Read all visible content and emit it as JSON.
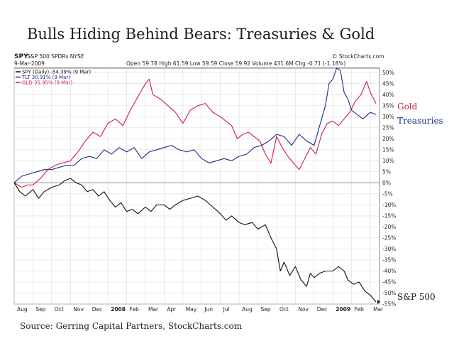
{
  "slide_title": "Bulls Hiding Behind Bears: Treasuries & Gold",
  "source": "Source: Gerring Capital Partners, StockCharts.com",
  "side_labels": {
    "gold": {
      "text": "Gold",
      "color": "#c0203a"
    },
    "treasuries": {
      "text": "Treasuries",
      "color": "#1a2a8a"
    },
    "sp500": {
      "text": "S&P 500",
      "color": "#111111"
    }
  },
  "header": {
    "ticker": "SPY",
    "name": "S&P 500 SPDRs NYSE",
    "credit": "© StockCharts.com",
    "date": "9-Mar-2009",
    "quote": "Open 59.78  High 61.59  Low 59.59  Close 59.92  Volume 431.6M  Chg -0.71 (-1.18%)"
  },
  "legend": [
    {
      "label": "SPY (Daily) -54.39% (9 Mar)",
      "color": "#111111"
    },
    {
      "label": "TLT 30.91% (9 Mar)",
      "color": "#1a2a8a"
    },
    {
      "label": "GLD 35.95% (9 Mar)",
      "color": "#d01a4a"
    }
  ],
  "chart_data": {
    "type": "line",
    "title": "",
    "xlabel": "",
    "ylabel": "",
    "ylim": [
      -55,
      52
    ],
    "y_ticks": [
      "50%",
      "45%",
      "40%",
      "35%",
      "30%",
      "25%",
      "20%",
      "15%",
      "10%",
      "5%",
      "0%",
      "-5%",
      "-10%",
      "-15%",
      "-20%",
      "-25%",
      "-30%",
      "-35%",
      "-40%",
      "-45%",
      "-50%",
      "-55%"
    ],
    "x_ticks": [
      {
        "label": "Aug",
        "bold": false
      },
      {
        "label": "Sep",
        "bold": false
      },
      {
        "label": "Oct",
        "bold": false
      },
      {
        "label": "Nov",
        "bold": false
      },
      {
        "label": "Dec",
        "bold": false
      },
      {
        "label": "2008",
        "bold": true
      },
      {
        "label": "Feb",
        "bold": false
      },
      {
        "label": "Mar",
        "bold": false
      },
      {
        "label": "Apr",
        "bold": false
      },
      {
        "label": "May",
        "bold": false
      },
      {
        "label": "Jun",
        "bold": false
      },
      {
        "label": "Jul",
        "bold": false
      },
      {
        "label": "Aug",
        "bold": false
      },
      {
        "label": "Sep",
        "bold": false
      },
      {
        "label": "Oct",
        "bold": false
      },
      {
        "label": "Nov",
        "bold": false
      },
      {
        "label": "Dec",
        "bold": false
      },
      {
        "label": "2009",
        "bold": true
      },
      {
        "label": "Feb",
        "bold": false
      },
      {
        "label": "Mar",
        "bold": false
      }
    ],
    "x_range": [
      0,
      19.3
    ],
    "grid": true,
    "series": [
      {
        "name": "SPY",
        "color": "#111111",
        "points": [
          [
            0,
            0
          ],
          [
            0.3,
            -4
          ],
          [
            0.6,
            -6
          ],
          [
            1,
            -3
          ],
          [
            1.3,
            -7
          ],
          [
            1.6,
            -4
          ],
          [
            2,
            -2
          ],
          [
            2.4,
            -1
          ],
          [
            2.7,
            1
          ],
          [
            3,
            2
          ],
          [
            3.3,
            0
          ],
          [
            3.6,
            -1
          ],
          [
            3.9,
            -4
          ],
          [
            4.2,
            -3
          ],
          [
            4.5,
            -6
          ],
          [
            4.8,
            -4
          ],
          [
            5.1,
            -8
          ],
          [
            5.4,
            -11
          ],
          [
            5.7,
            -9
          ],
          [
            6,
            -13
          ],
          [
            6.3,
            -12
          ],
          [
            6.6,
            -14
          ],
          [
            7,
            -11
          ],
          [
            7.3,
            -13
          ],
          [
            7.6,
            -10
          ],
          [
            8,
            -10
          ],
          [
            8.3,
            -12
          ],
          [
            8.6,
            -10
          ],
          [
            9,
            -8
          ],
          [
            9.4,
            -7
          ],
          [
            9.8,
            -6
          ],
          [
            10.2,
            -8
          ],
          [
            10.6,
            -11
          ],
          [
            11,
            -14
          ],
          [
            11.3,
            -17
          ],
          [
            11.6,
            -15
          ],
          [
            12,
            -18
          ],
          [
            12.3,
            -19
          ],
          [
            12.7,
            -18
          ],
          [
            13,
            -21
          ],
          [
            13.4,
            -19
          ],
          [
            13.7,
            -25
          ],
          [
            14,
            -30
          ],
          [
            14.2,
            -40
          ],
          [
            14.4,
            -36
          ],
          [
            14.7,
            -42
          ],
          [
            15,
            -38
          ],
          [
            15.3,
            -44
          ],
          [
            15.6,
            -47
          ],
          [
            15.8,
            -41
          ],
          [
            16,
            -43
          ],
          [
            16.3,
            -41
          ],
          [
            16.6,
            -40
          ],
          [
            17,
            -40
          ],
          [
            17.3,
            -38
          ],
          [
            17.6,
            -40
          ],
          [
            17.8,
            -44
          ],
          [
            18.1,
            -46
          ],
          [
            18.4,
            -45
          ],
          [
            18.7,
            -49
          ],
          [
            19,
            -51
          ],
          [
            19.3,
            -54
          ]
        ]
      },
      {
        "name": "TLT",
        "color": "#1a2a8a",
        "points": [
          [
            0,
            0
          ],
          [
            0.4,
            3
          ],
          [
            0.8,
            4
          ],
          [
            1.2,
            5
          ],
          [
            1.6,
            6
          ],
          [
            2,
            6
          ],
          [
            2.4,
            7
          ],
          [
            2.8,
            8
          ],
          [
            3.2,
            8
          ],
          [
            3.6,
            11
          ],
          [
            4,
            12
          ],
          [
            4.4,
            11
          ],
          [
            4.8,
            15
          ],
          [
            5.2,
            13
          ],
          [
            5.6,
            16
          ],
          [
            6,
            14
          ],
          [
            6.4,
            16
          ],
          [
            6.8,
            11
          ],
          [
            7.2,
            14
          ],
          [
            7.6,
            15
          ],
          [
            8,
            16
          ],
          [
            8.4,
            17
          ],
          [
            8.8,
            15
          ],
          [
            9.2,
            14
          ],
          [
            9.6,
            15
          ],
          [
            10,
            11
          ],
          [
            10.4,
            9
          ],
          [
            10.8,
            10
          ],
          [
            11.2,
            11
          ],
          [
            11.6,
            10
          ],
          [
            12,
            12
          ],
          [
            12.4,
            13
          ],
          [
            12.8,
            16
          ],
          [
            13.2,
            17
          ],
          [
            13.6,
            19
          ],
          [
            14,
            22
          ],
          [
            14.4,
            21
          ],
          [
            14.8,
            17
          ],
          [
            15.2,
            22
          ],
          [
            15.6,
            19
          ],
          [
            16,
            17
          ],
          [
            16.3,
            26
          ],
          [
            16.6,
            35
          ],
          [
            16.8,
            45
          ],
          [
            17,
            47
          ],
          [
            17.2,
            52
          ],
          [
            17.4,
            51
          ],
          [
            17.6,
            41
          ],
          [
            17.8,
            38
          ],
          [
            18,
            33
          ],
          [
            18.3,
            31
          ],
          [
            18.6,
            29
          ],
          [
            19,
            32
          ],
          [
            19.3,
            31
          ]
        ]
      },
      {
        "name": "GLD",
        "color": "#d01a4a",
        "points": [
          [
            0,
            0
          ],
          [
            0.4,
            -2
          ],
          [
            0.7,
            -1
          ],
          [
            1,
            -1
          ],
          [
            1.4,
            2
          ],
          [
            1.8,
            6
          ],
          [
            2.2,
            8
          ],
          [
            2.6,
            9
          ],
          [
            3,
            10
          ],
          [
            3.4,
            14
          ],
          [
            3.8,
            19
          ],
          [
            4.2,
            23
          ],
          [
            4.6,
            21
          ],
          [
            5,
            27
          ],
          [
            5.4,
            29
          ],
          [
            5.8,
            26
          ],
          [
            6.2,
            33
          ],
          [
            6.6,
            39
          ],
          [
            7,
            45
          ],
          [
            7.2,
            47
          ],
          [
            7.4,
            40
          ],
          [
            7.8,
            38
          ],
          [
            8.2,
            35
          ],
          [
            8.6,
            32
          ],
          [
            9,
            27
          ],
          [
            9.4,
            33
          ],
          [
            9.8,
            35
          ],
          [
            10.2,
            36
          ],
          [
            10.6,
            32
          ],
          [
            11,
            30
          ],
          [
            11.3,
            28
          ],
          [
            11.6,
            26
          ],
          [
            11.9,
            20
          ],
          [
            12.2,
            22
          ],
          [
            12.5,
            23
          ],
          [
            12.8,
            21
          ],
          [
            13.1,
            19
          ],
          [
            13.4,
            13
          ],
          [
            13.7,
            9
          ],
          [
            14,
            21
          ],
          [
            14.3,
            16
          ],
          [
            14.6,
            12
          ],
          [
            14.9,
            9
          ],
          [
            15.2,
            6
          ],
          [
            15.5,
            11
          ],
          [
            15.8,
            16
          ],
          [
            16.1,
            13
          ],
          [
            16.4,
            22
          ],
          [
            16.7,
            27
          ],
          [
            17,
            28
          ],
          [
            17.3,
            26
          ],
          [
            17.6,
            29
          ],
          [
            17.9,
            32
          ],
          [
            18.2,
            37
          ],
          [
            18.5,
            40
          ],
          [
            18.8,
            46
          ],
          [
            19,
            41
          ],
          [
            19.3,
            36
          ]
        ]
      }
    ]
  }
}
